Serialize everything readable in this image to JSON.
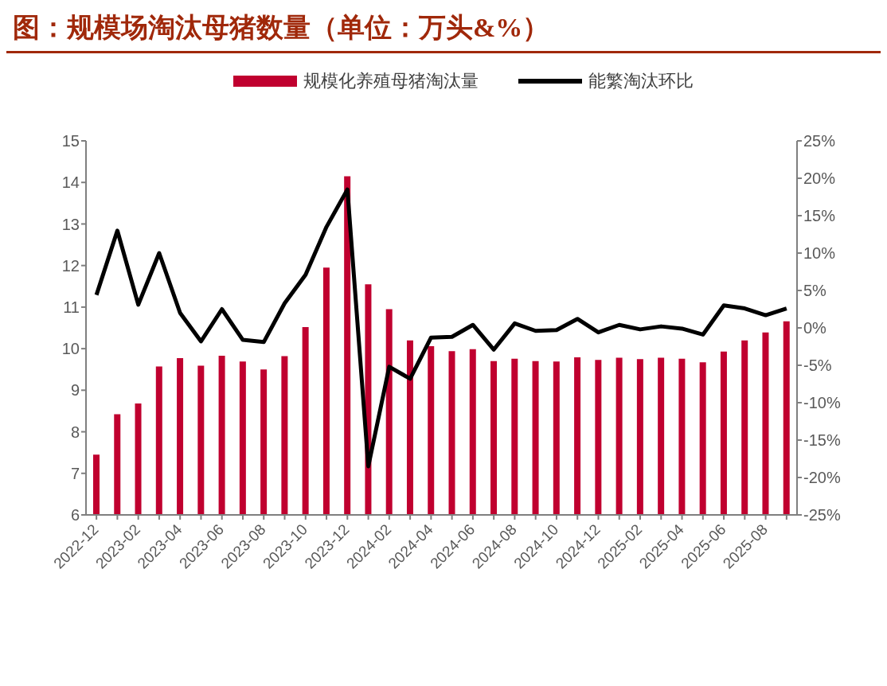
{
  "chart_data": {
    "type": "bar",
    "title": "图：规模场淘汰母猪数量（单位：万头&%）",
    "categories": [
      "2022-12",
      null,
      "2023-02",
      null,
      "2023-04",
      null,
      "2023-06",
      null,
      "2023-08",
      null,
      "2023-10",
      null,
      "2023-12",
      null,
      "2024-02",
      null,
      "2024-04",
      null,
      "2024-06",
      null,
      "2024-08",
      null,
      "2024-10",
      null,
      "2024-12",
      null,
      "2025-02",
      null,
      "2025-04",
      null,
      "2025-06",
      null,
      "2025-08",
      null
    ],
    "series": [
      {
        "name": "规模化养殖母猪淘汰量",
        "color": "#c0002f",
        "values": [
          7.45,
          8.42,
          8.68,
          9.57,
          9.77,
          9.59,
          9.83,
          9.69,
          9.5,
          9.82,
          10.52,
          11.95,
          14.15,
          11.55,
          10.95,
          10.2,
          10.06,
          9.94,
          9.99,
          9.7,
          9.76,
          9.7,
          9.69,
          9.79,
          9.73,
          9.78,
          9.75,
          9.78,
          9.76,
          9.67,
          9.93,
          10.2,
          10.39,
          10.66
        ]
      },
      {
        "name": "能繁淘汰环比",
        "type": "line",
        "axis": "y2",
        "color": "#000000",
        "values": [
          4.4,
          13,
          3.1,
          10,
          2,
          -1.8,
          2.5,
          -1.6,
          -1.9,
          3.3,
          7.1,
          13.5,
          18.5,
          -18.5,
          -5.2,
          -6.8,
          -1.3,
          -1.2,
          0.4,
          -2.9,
          0.6,
          -0.4,
          -0.3,
          1.2,
          -0.6,
          0.4,
          -0.2,
          0.2,
          -0.1,
          -0.9,
          3,
          2.6,
          1.7,
          2.6
        ]
      }
    ],
    "ylim": [
      6,
      15
    ],
    "yticks": [
      6,
      7,
      8,
      9,
      10,
      11,
      12,
      13,
      14,
      15
    ],
    "y2lim": [
      -25,
      25
    ],
    "y2ticks": [
      {
        "value": -25,
        "label": "-25%"
      },
      {
        "value": -20,
        "label": "-20%"
      },
      {
        "value": -15,
        "label": "-15%"
      },
      {
        "value": -10,
        "label": "-10%"
      },
      {
        "value": -5,
        "label": "-5%"
      },
      {
        "value": 0,
        "label": "0%"
      },
      {
        "value": 5,
        "label": "5%"
      },
      {
        "value": 10,
        "label": "10%"
      },
      {
        "value": 15,
        "label": "15%"
      },
      {
        "value": 20,
        "label": "20%"
      },
      {
        "value": 25,
        "label": "25%"
      }
    ],
    "grid": false,
    "legend": "top",
    "marker": "none",
    "line_style": "solid"
  }
}
